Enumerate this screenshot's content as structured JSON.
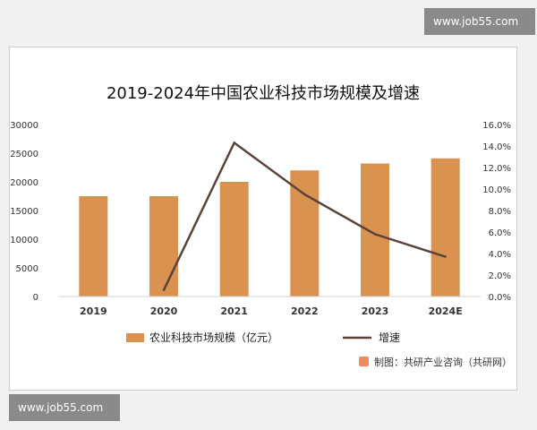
{
  "watermark_top": "www.job55.com",
  "watermark_bottom": "www.job55.com",
  "source_note": "制图：共研产业咨询（共研网）",
  "colors": {
    "bar": "#d9924f",
    "line": "#5b4337",
    "axis_text": "#333333",
    "source_icon": "#f08a5d"
  },
  "chart_data": {
    "type": "bar",
    "title": "2019-2024年中国农业科技市场规模及增速",
    "categories": [
      "2019",
      "2020",
      "2021",
      "2022",
      "2023",
      "2024E"
    ],
    "series": [
      {
        "name": "农业科技市场规模（亿元）",
        "type": "bar",
        "axis": "left",
        "values": [
          17500,
          17500,
          20000,
          22000,
          23200,
          24100
        ]
      },
      {
        "name": "增速",
        "type": "line",
        "axis": "right",
        "values": [
          null,
          0.6,
          14.3,
          9.5,
          5.8,
          3.7
        ]
      }
    ],
    "y_left": {
      "lim": [
        0,
        30000
      ],
      "ticks": [
        "0",
        "5000",
        "10000",
        "15000",
        "20000",
        "25000",
        "30000"
      ]
    },
    "y_right": {
      "lim": [
        0,
        16
      ],
      "ticks": [
        "0.0%",
        "2.0%",
        "4.0%",
        "6.0%",
        "8.0%",
        "10.0%",
        "12.0%",
        "14.0%",
        "16.0%"
      ]
    },
    "grid": false,
    "legend": "bottom"
  }
}
